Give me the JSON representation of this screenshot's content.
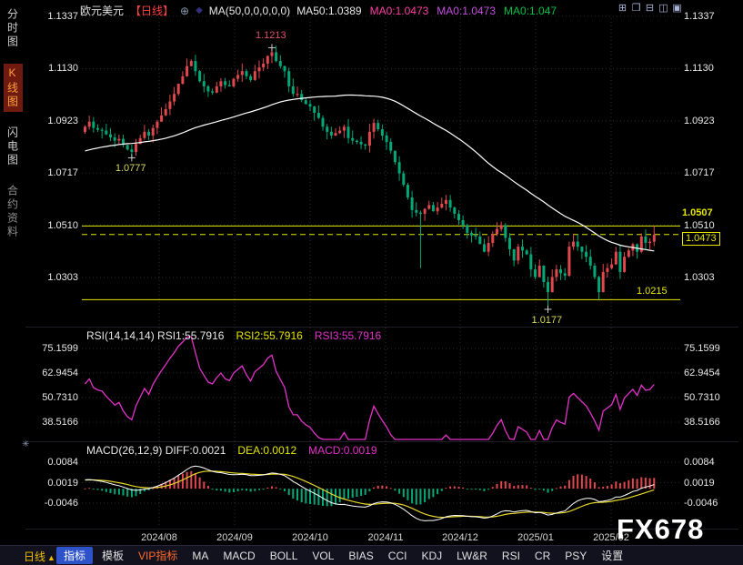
{
  "app": {
    "watermark": "FX678",
    "panel_marker": "✳"
  },
  "colors": {
    "accent_yellow": "#e6e600",
    "up_red": "#e0484e",
    "down_green": "#00a878",
    "magenta": "#e332c8",
    "dea_yellow": "#e6d52a",
    "white": "#ffffff",
    "header_red": "#ff4040",
    "vip_orange": "#ff6a2a",
    "tab_blue": "#2e52c8"
  },
  "header": {
    "symbol": "欧元美元",
    "period_tag": "【日线】",
    "plus_icon": "⊕",
    "diamond_icon": "◆",
    "ma_settings": "MA(50,0,0,0,0,0)",
    "ma_values": [
      {
        "label": "MA50:1.0389",
        "color": "#e8e8e8"
      },
      {
        "label": "MA0:1.0473",
        "color": "#ff3ea5"
      },
      {
        "label": "MA0:1.0473",
        "color": "#c44ee0"
      },
      {
        "label": "MA0:1.047",
        "color": "#00c04a"
      }
    ]
  },
  "window_controls": [
    {
      "name": "layout-tile-icon",
      "glyph": "⊞"
    },
    {
      "name": "layout-cascade-icon",
      "glyph": "❐"
    },
    {
      "name": "layout-hsplit-icon",
      "glyph": "⊟"
    },
    {
      "name": "layout-vsplit-icon",
      "glyph": "◫"
    },
    {
      "name": "layout-max-icon",
      "glyph": "▣"
    }
  ],
  "sidebar": {
    "tabs": [
      {
        "name": "time-chart",
        "label": "分时图",
        "active": false,
        "dim": false
      },
      {
        "name": "candlestick-chart",
        "label": "K线图",
        "active": true,
        "dim": false
      },
      {
        "name": "flash-chart",
        "label": "闪电图",
        "active": false,
        "dim": false
      },
      {
        "name": "contract-info",
        "label": "合约资料",
        "active": false,
        "dim": true
      }
    ]
  },
  "rsi_header": {
    "main": "RSI(14,14,14) RSI1:55.7916",
    "rsi2": "RSI2:55.7916",
    "rsi3": "RSI3:55.7916"
  },
  "macd_header": {
    "main": "MACD(26,12,9) DIFF:0.0021",
    "dea": "DEA:0.0012",
    "macd": "MACD:0.0019"
  },
  "toolbar": {
    "period_label": "日线",
    "period_arrow": "▲",
    "tabs": [
      {
        "id": "zhibiao",
        "label": "指标",
        "style": "primary"
      },
      {
        "id": "moban",
        "label": "模板",
        "style": "normal"
      },
      {
        "id": "vip",
        "label": "VIP指标",
        "style": "vip"
      },
      {
        "id": "ma",
        "label": "MA",
        "style": "normal"
      },
      {
        "id": "macd",
        "label": "MACD",
        "style": "normal"
      },
      {
        "id": "boll",
        "label": "BOLL",
        "style": "normal"
      },
      {
        "id": "vol",
        "label": "VOL",
        "style": "normal"
      },
      {
        "id": "bias",
        "label": "BIAS",
        "style": "normal"
      },
      {
        "id": "cci",
        "label": "CCI",
        "style": "normal"
      },
      {
        "id": "kdj",
        "label": "KDJ",
        "style": "normal"
      },
      {
        "id": "lwr",
        "label": "LW&R",
        "style": "normal"
      },
      {
        "id": "rsi",
        "label": "RSI",
        "style": "normal"
      },
      {
        "id": "cr",
        "label": "CR",
        "style": "normal"
      },
      {
        "id": "psy",
        "label": "PSY",
        "style": "normal"
      },
      {
        "id": "shezhi",
        "label": "设置",
        "style": "normal"
      }
    ]
  },
  "chart_data": {
    "type": "candlestick",
    "title": "欧元美元 日线 (EUR/USD Daily)",
    "x_labels": [
      "2024/08",
      "2024/09",
      "2024/10",
      "2024/11",
      "2024/12",
      "2025/01",
      "2025/02"
    ],
    "price_axis": [
      1.1337,
      1.113,
      1.0923,
      1.0717,
      1.051,
      1.0303
    ],
    "rsi_axis": [
      75.1599,
      62.9454,
      50.731,
      38.5166
    ],
    "macd_axis": [
      0.0084,
      0.0019,
      -0.0046
    ],
    "closes": [
      1.09,
      1.092,
      1.0895,
      1.0888,
      1.0885,
      1.087,
      1.0858,
      1.0845,
      1.0852,
      1.0828,
      1.081,
      1.08,
      1.0832,
      1.0855,
      1.088,
      1.0865,
      1.0895,
      1.092,
      1.0945,
      1.097,
      1.1,
      1.103,
      1.107,
      1.11,
      1.114,
      1.116,
      1.112,
      1.108,
      1.106,
      1.104,
      1.1035,
      1.106,
      1.108,
      1.1065,
      1.106,
      1.109,
      1.1105,
      1.112,
      1.11,
      1.1085,
      1.112,
      1.1135,
      1.115,
      1.118,
      1.1195,
      1.116,
      1.114,
      1.112,
      1.106,
      1.103,
      1.103,
      1.1005,
      1.099,
      1.098,
      1.0955,
      1.0935,
      1.09,
      1.088,
      1.0865,
      1.0875,
      1.0885,
      1.09,
      1.0855,
      1.0845,
      1.084,
      1.083,
      1.0825,
      1.088,
      1.0915,
      1.089,
      1.0865,
      1.084,
      1.0805,
      1.076,
      1.0715,
      1.067,
      1.062,
      1.057,
      1.056,
      1.0555,
      1.0575,
      1.059,
      1.0565,
      1.058,
      1.0595,
      1.061,
      1.058,
      1.0555,
      1.053,
      1.051,
      1.048,
      1.047,
      1.0465,
      1.0435,
      1.0405,
      1.044,
      1.0475,
      1.0495,
      1.051,
      1.046,
      1.0415,
      1.037,
      1.0425,
      1.041,
      1.0395,
      1.0335,
      1.0305,
      1.035,
      1.0285,
      1.0245,
      1.0305,
      1.0335,
      1.032,
      1.031,
      1.0425,
      1.0445,
      1.0425,
      1.0405,
      1.0385,
      1.035,
      1.0305,
      1.0245,
      1.0325,
      1.034,
      1.0355,
      1.0405,
      1.0325,
      1.0385,
      1.041,
      1.0435,
      1.0405,
      1.0465,
      1.044,
      1.0445,
      1.0473
    ],
    "wick_overrides": {
      "11": {
        "low": 1.0777
      },
      "44": {
        "high": 1.1213
      },
      "79": {
        "low": 1.034
      },
      "109": {
        "low": 1.0177
      },
      "121": {
        "low": 1.0215
      },
      "134": {
        "high": 1.0507
      }
    },
    "levels": [
      {
        "type": "resistance",
        "label": "1.0507",
        "price": 1.0507,
        "style": "solid",
        "badge": "plain"
      },
      {
        "type": "last-price",
        "label": "1.0473",
        "price": 1.0473,
        "style": "dashed",
        "badge": "boxed"
      },
      {
        "type": "support",
        "label": "1.0215",
        "price": 1.0215,
        "style": "solid",
        "badge": "inner"
      }
    ],
    "annotations": [
      {
        "label": "1.1213",
        "price": 1.1213,
        "index": 44,
        "placement": "above",
        "color": "#e0506a"
      },
      {
        "label": "1.0777",
        "price": 1.0777,
        "index": 11,
        "placement": "below",
        "color": "#d8d860"
      },
      {
        "label": "1.0177",
        "price": 1.0177,
        "index": 109,
        "placement": "below",
        "color": "#d8d860"
      }
    ],
    "indicators": {
      "ma50_value": 1.0389,
      "rsi_values": [
        55.7916,
        55.7916,
        55.7916
      ],
      "macd_diff": 0.0021,
      "macd_dea": 0.0012,
      "macd_bar": 0.0019
    }
  }
}
